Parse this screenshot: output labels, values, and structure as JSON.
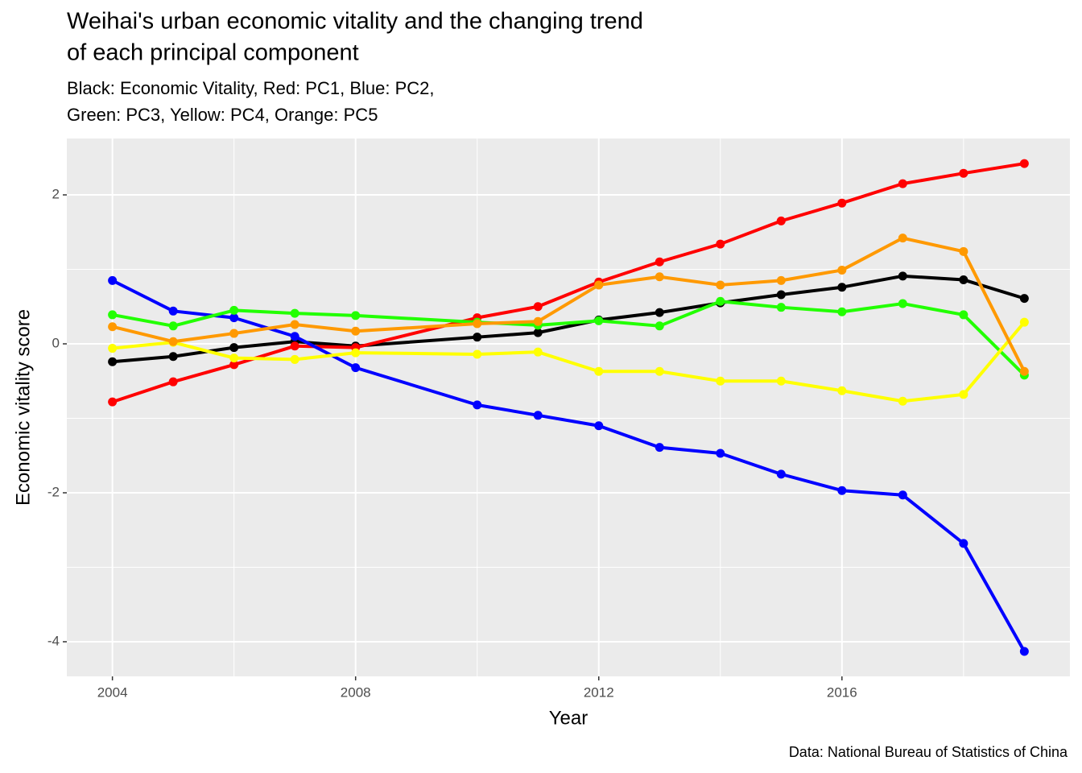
{
  "chart_data": {
    "type": "line",
    "title": [
      "Weihai's urban economic vitality and the changing trend",
      "of each principal component"
    ],
    "subtitle": [
      "Black: Economic Vitality, Red: PC1, Blue: PC2,",
      "Green: PC3, Yellow: PC4, Orange: PC5"
    ],
    "x_label": "Year",
    "y_label": "Economic vitality score",
    "caption": "Data: National Bureau of Statistics of China",
    "x": [
      2004,
      2005,
      2006,
      2007,
      2008,
      2010,
      2011,
      2012,
      2013,
      2014,
      2015,
      2016,
      2017,
      2018,
      2019
    ],
    "series": [
      {
        "color": "#000000",
        "values": [
          -0.24,
          -0.17,
          -0.05,
          0.03,
          -0.03,
          0.09,
          0.15,
          0.32,
          0.42,
          0.55,
          0.66,
          0.76,
          0.91,
          0.86,
          0.61
        ]
      },
      {
        "color": "#ff0000",
        "values": [
          -0.78,
          -0.51,
          -0.28,
          -0.03,
          -0.05,
          0.35,
          0.5,
          0.83,
          1.1,
          1.34,
          1.65,
          1.89,
          2.15,
          2.29,
          2.42
        ]
      },
      {
        "color": "#0000ff",
        "values": [
          0.85,
          0.44,
          0.35,
          0.1,
          -0.32,
          -0.82,
          -0.96,
          -1.1,
          -1.39,
          -1.47,
          -1.75,
          -1.97,
          -2.03,
          -2.68,
          -4.13
        ]
      },
      {
        "color": "#22ff00",
        "values": [
          0.39,
          0.24,
          0.45,
          0.41,
          0.38,
          0.29,
          0.25,
          0.31,
          0.24,
          0.57,
          0.49,
          0.43,
          0.54,
          0.39,
          -0.42
        ]
      },
      {
        "color": "#ffff00",
        "values": [
          -0.06,
          0.02,
          -0.19,
          -0.21,
          -0.12,
          -0.14,
          -0.11,
          -0.37,
          -0.37,
          -0.5,
          -0.5,
          -0.63,
          -0.77,
          -0.68,
          0.29
        ]
      },
      {
        "color": "#ff9900",
        "values": [
          0.23,
          0.03,
          0.14,
          0.26,
          0.17,
          0.27,
          0.3,
          0.79,
          0.9,
          0.79,
          0.85,
          0.99,
          1.42,
          1.24,
          -0.37
        ]
      }
    ],
    "xlim": [
      2003.25,
      2019.75
    ],
    "ylim": [
      -4.465,
      2.757
    ],
    "xticks": [
      2004,
      2008,
      2012,
      2016
    ],
    "yticks": [
      -4,
      -2,
      0,
      2
    ],
    "x_minor_ticks": [
      2006,
      2010,
      2014,
      2018
    ],
    "y_minor_ticks": [
      -3,
      -1,
      1
    ],
    "grid": true,
    "panel_color": "#ebebeb"
  }
}
